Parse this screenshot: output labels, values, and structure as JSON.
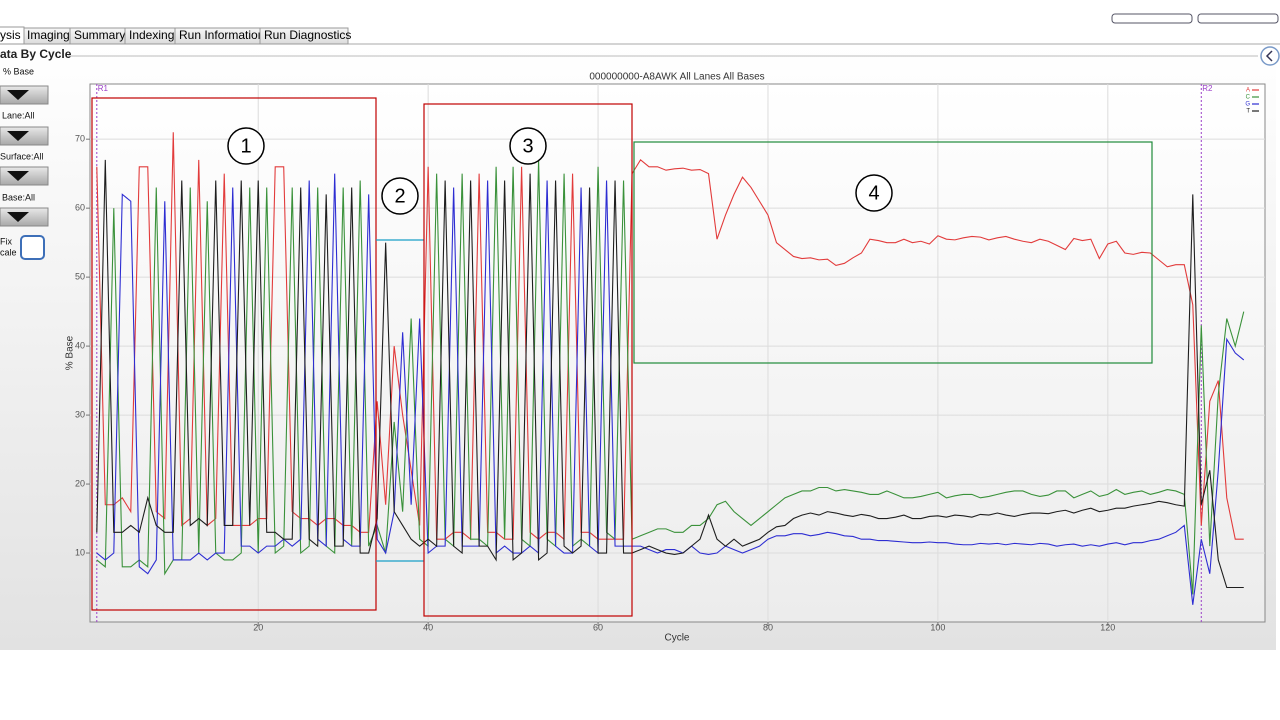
{
  "tabs": [
    "ysis",
    "Imaging",
    "Summary",
    "Indexing",
    "Run Information",
    "Run Diagnostics"
  ],
  "section_title": "ata By Cycle",
  "sidebar": {
    "labels": [
      "% Base",
      "Lane:All",
      "Surface:All",
      "Base:All"
    ],
    "fix_scale": [
      "Fix",
      "cale"
    ]
  },
  "annotations": [
    "1",
    "2",
    "3",
    "4"
  ],
  "chart_data": {
    "type": "line",
    "title": "000000000-A8AWK All Lanes All Bases",
    "x_label": "Cycle",
    "y_label": "% Base",
    "x": [
      1,
      2,
      3,
      4,
      5,
      6,
      7,
      8,
      9,
      10,
      11,
      12,
      13,
      14,
      15,
      16,
      17,
      18,
      19,
      20,
      21,
      22,
      23,
      24,
      25,
      26,
      27,
      28,
      29,
      30,
      31,
      32,
      33,
      34,
      35,
      36,
      37,
      38,
      39,
      40,
      41,
      42,
      43,
      44,
      45,
      46,
      47,
      48,
      49,
      50,
      51,
      52,
      53,
      54,
      55,
      56,
      57,
      58,
      59,
      60,
      61,
      62,
      63,
      64,
      65,
      66,
      67,
      68,
      69,
      70,
      71,
      72,
      73,
      74,
      75,
      76,
      77,
      78,
      79,
      80,
      81,
      82,
      83,
      84,
      85,
      86,
      87,
      88,
      89,
      90,
      91,
      92,
      93,
      94,
      95,
      96,
      97,
      98,
      99,
      100,
      101,
      102,
      103,
      104,
      105,
      106,
      107,
      108,
      109,
      110,
      111,
      112,
      113,
      114,
      115,
      116,
      117,
      118,
      119,
      120,
      121,
      122,
      123,
      124,
      125,
      126,
      127,
      128,
      129,
      130,
      131,
      132,
      133,
      134,
      135,
      136
    ],
    "series": [
      {
        "name": "A",
        "color": "#e23b3b",
        "values": [
          66,
          17,
          17,
          18,
          16,
          66,
          66,
          16,
          15,
          71,
          14,
          15,
          67,
          14,
          15,
          65,
          14,
          14,
          14,
          15,
          15,
          66,
          66,
          16,
          15,
          15,
          14,
          15,
          15,
          14,
          14,
          13,
          13,
          32,
          17,
          40,
          30,
          22,
          14,
          66,
          12,
          12,
          13,
          13,
          12,
          65,
          13,
          13,
          12,
          12,
          66,
          13,
          12,
          13,
          13,
          12,
          65,
          13,
          13,
          12,
          12,
          12,
          12,
          65,
          67,
          66,
          66,
          65.5,
          65.7,
          65.8,
          65.5,
          65.6,
          65,
          55.5,
          59,
          62,
          64.5,
          63,
          61,
          59,
          55,
          54,
          53,
          52.7,
          52.8,
          52.5,
          52.6,
          51.7,
          52,
          52.8,
          53.5,
          55.5,
          55.3,
          55,
          55,
          55.5,
          55,
          55.2,
          54.8,
          56,
          55.5,
          55.4,
          55.7,
          55.9,
          55.8,
          55.4,
          55.7,
          55.9,
          55.5,
          55.2,
          55,
          55.5,
          55.2,
          54.6,
          54,
          55.6,
          55.3,
          55.5,
          52.7,
          54.8,
          55.2,
          53.5,
          53.3,
          53.6,
          53.5,
          52.5,
          51.5,
          51.8,
          51.8,
          46,
          14,
          32,
          35,
          18,
          12,
          12
        ]
      },
      {
        "name": "C",
        "color": "#3a913a",
        "values": [
          9,
          8,
          60,
          8,
          8,
          9,
          8,
          63,
          7,
          9,
          9,
          63,
          10,
          61,
          10,
          9,
          9,
          10,
          63,
          10,
          63,
          10,
          11,
          63,
          10,
          11,
          63,
          11,
          10,
          63,
          11,
          64,
          11,
          14,
          10,
          29,
          16,
          44,
          12,
          11,
          65,
          12,
          11,
          65,
          12,
          12,
          11,
          66,
          12,
          66,
          12,
          11,
          67,
          12,
          11,
          65,
          11,
          12,
          11,
          66,
          13,
          12,
          64,
          12,
          12.5,
          13,
          13.5,
          13.5,
          13,
          13,
          14,
          14,
          15,
          17,
          17.5,
          16,
          15,
          14,
          15,
          16,
          17,
          18,
          18.5,
          19,
          19,
          19.5,
          19.5,
          19,
          19.2,
          19,
          18.8,
          18.5,
          18.5,
          19,
          18.5,
          18,
          18,
          18.2,
          18.5,
          18.8,
          18,
          18.3,
          18.5,
          18.5,
          18,
          18.2,
          18.5,
          18.8,
          19,
          19,
          18.5,
          18.2,
          18.4,
          19,
          19,
          18,
          18.5,
          19,
          18.2,
          18.5,
          19.2,
          18.5,
          18.8,
          19,
          18.5,
          18.8,
          19.2,
          19,
          18.5,
          4,
          43,
          11,
          33,
          44,
          40,
          45
        ]
      },
      {
        "name": "G",
        "color": "#2d2dd2",
        "values": [
          10,
          9,
          10,
          62,
          61,
          8,
          7,
          9,
          61,
          9,
          9,
          9,
          10,
          9,
          10,
          10,
          63,
          11,
          11,
          10,
          11,
          11,
          12,
          11,
          12,
          64,
          12,
          11,
          65,
          12,
          11,
          11,
          62,
          12,
          10,
          16,
          42,
          17,
          44,
          10,
          11,
          11,
          63,
          11,
          11,
          11,
          64,
          10,
          11,
          10,
          10,
          11,
          10,
          64,
          11,
          10,
          10,
          63,
          11,
          10,
          64,
          11,
          11,
          11,
          11,
          10.5,
          10,
          10.5,
          10.5,
          10,
          11,
          10,
          9.8,
          10,
          11,
          10.5,
          10,
          10.5,
          11,
          12,
          12.5,
          12.5,
          12.8,
          12.8,
          12.5,
          12.7,
          13,
          12.8,
          12.5,
          12.4,
          12,
          12,
          11.8,
          11.8,
          11.7,
          11.6,
          11.5,
          11.5,
          11.6,
          11.5,
          11.5,
          11.3,
          11.2,
          11.2,
          11.4,
          11.3,
          11.4,
          11.2,
          11.4,
          11.3,
          11.2,
          11.4,
          11.3,
          11,
          11.2,
          11.3,
          11,
          11.2,
          11,
          11.3,
          11.5,
          11.2,
          11.5,
          11.5,
          11.8,
          12,
          12.5,
          13,
          14,
          2.5,
          12,
          7,
          22,
          41,
          39,
          38
        ]
      },
      {
        "name": "T",
        "color": "#1e1e1e",
        "values": [
          13,
          67,
          13,
          13,
          14,
          13,
          18,
          14,
          13,
          13,
          64,
          14,
          15,
          14,
          64,
          14,
          14,
          64,
          14,
          64,
          13,
          13,
          12,
          12,
          63,
          12,
          11,
          62,
          11,
          11,
          63,
          10,
          10,
          15,
          55,
          16,
          14,
          12,
          11,
          12,
          11,
          64,
          11,
          10,
          64,
          11,
          11,
          9,
          64,
          9,
          10,
          65,
          9,
          10,
          64,
          11,
          10,
          11,
          63,
          10,
          10,
          64,
          10,
          10,
          10.5,
          11,
          10.5,
          10,
          9.8,
          10,
          11,
          12,
          15.5,
          12,
          11,
          12,
          11,
          11.5,
          12,
          13,
          13.8,
          14,
          15,
          15.5,
          15.8,
          15.5,
          16,
          15.8,
          15.5,
          15.3,
          15.6,
          15.4,
          15,
          15,
          15.2,
          15.5,
          15,
          15,
          15.3,
          15.4,
          15.2,
          15.5,
          15.4,
          15.2,
          15.6,
          15.5,
          15.8,
          15.5,
          15.3,
          15.6,
          15.8,
          15.8,
          15.7,
          16,
          16.2,
          15.8,
          16.2,
          16.5,
          16,
          16.2,
          16.5,
          16.5,
          16.8,
          17,
          17.2,
          17.5,
          17.3,
          17,
          16.8,
          62,
          17,
          22,
          9,
          5,
          5,
          5
        ]
      }
    ],
    "markers": [
      {
        "label": "R1",
        "x": 1
      },
      {
        "label": "R2",
        "x": 131
      }
    ],
    "xlim": [
      0.2,
      138.5
    ],
    "ylim": [
      0,
      78
    ],
    "xticks": [
      20,
      40,
      60,
      80,
      100,
      120
    ],
    "yticks": [
      10,
      20,
      30,
      40,
      50,
      60,
      70
    ],
    "grid": true,
    "legend": "top-right"
  }
}
